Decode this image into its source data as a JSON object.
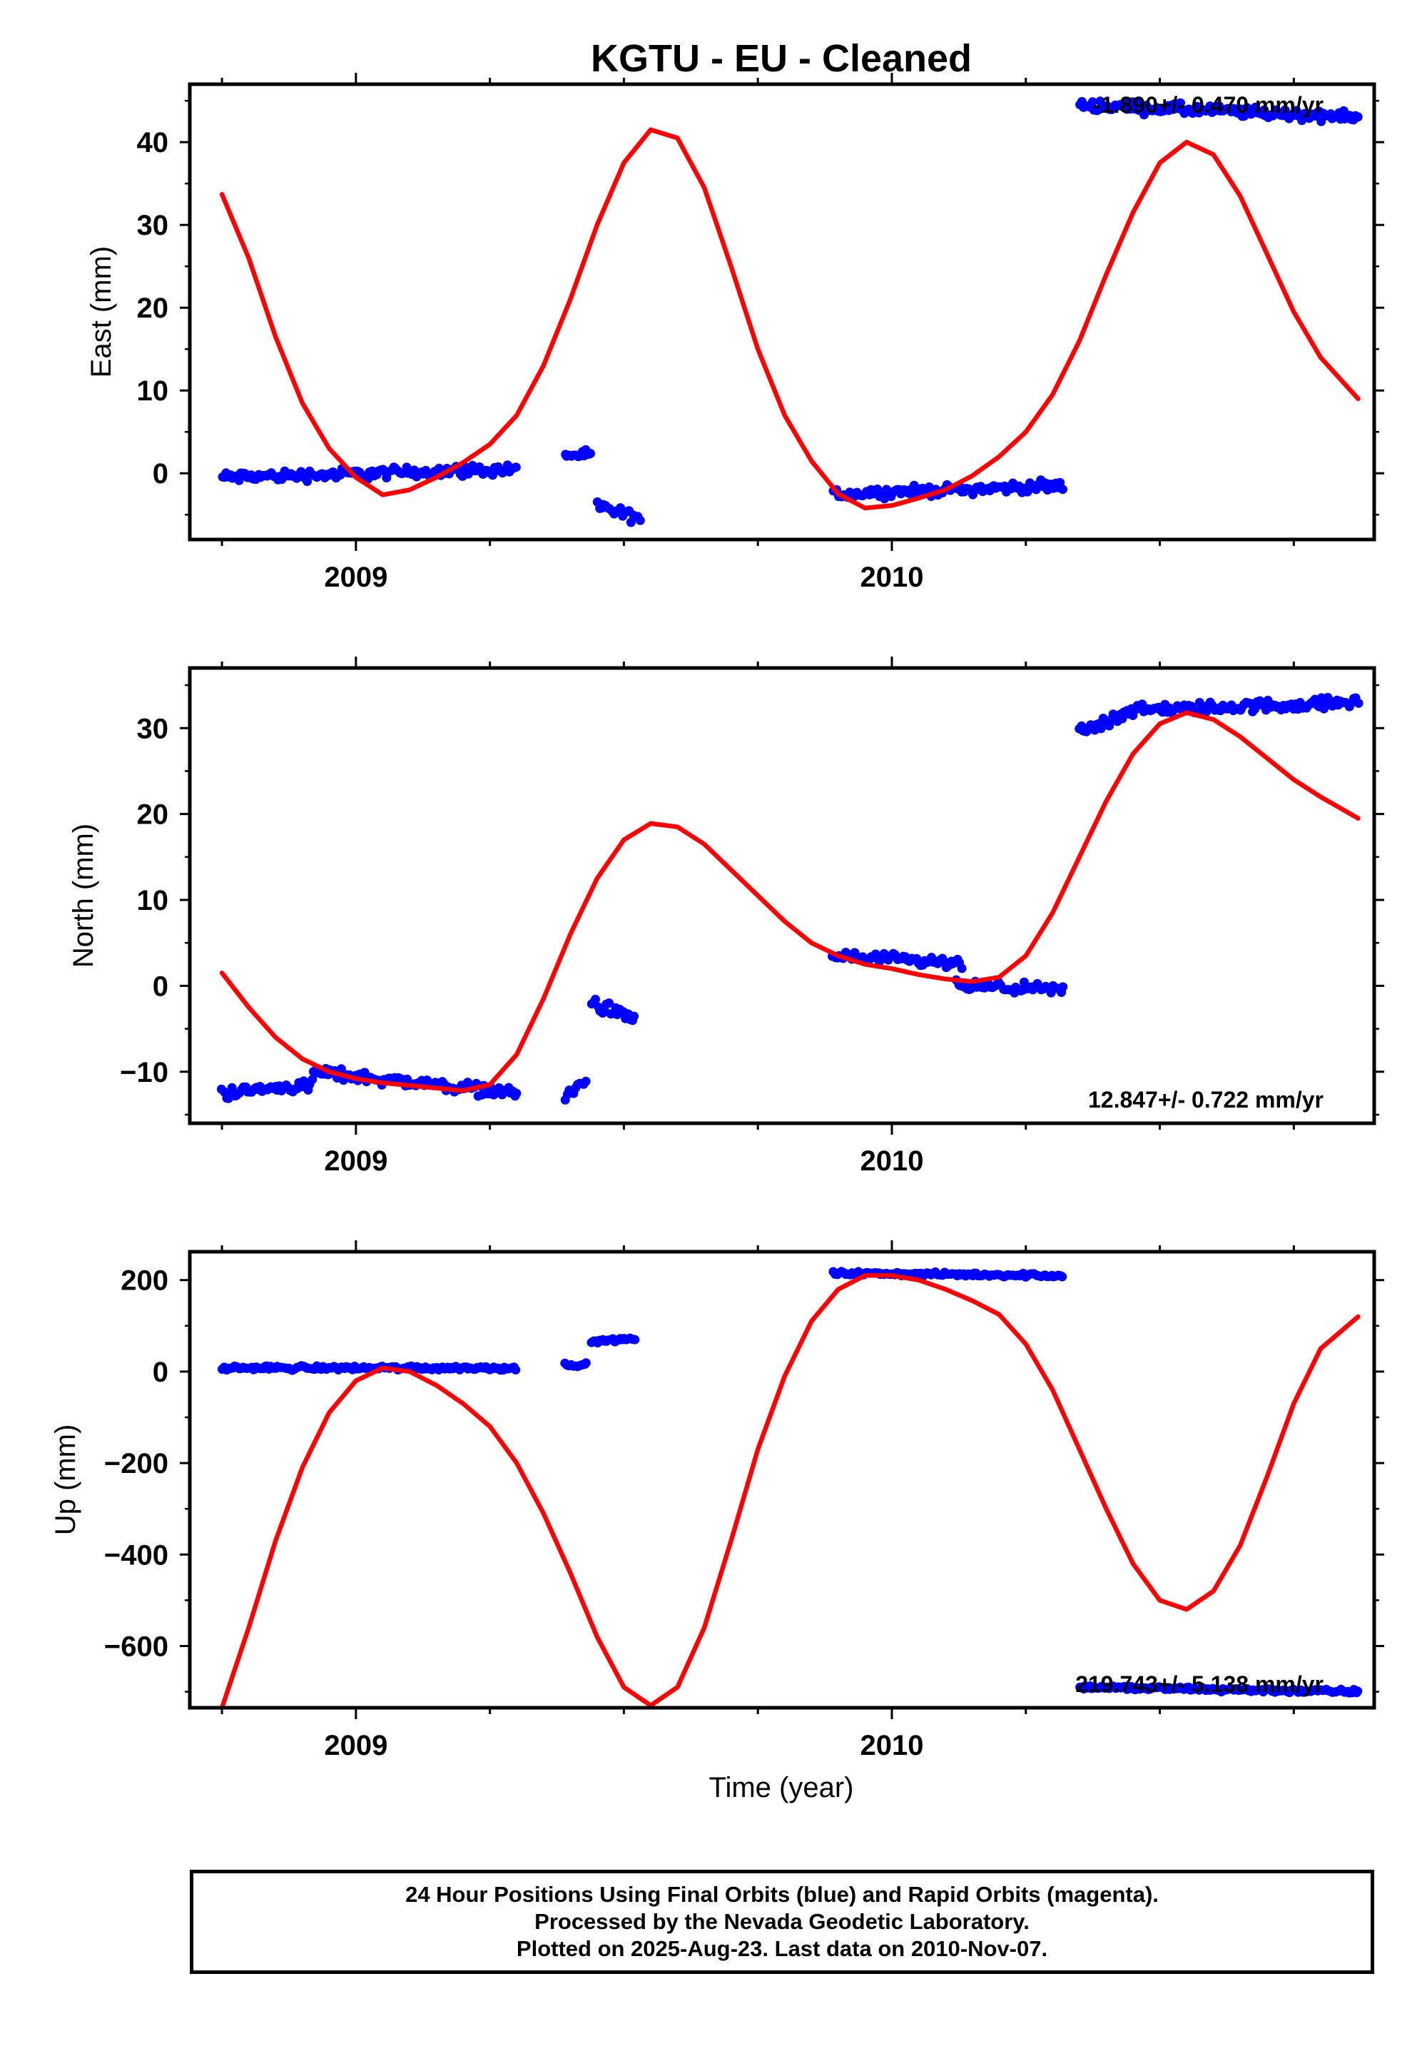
{
  "title": "KGTU  - EU - Cleaned",
  "colors": {
    "final_orbits": "#0000ff",
    "model_fit": "#ff0000",
    "frame": "#000000"
  },
  "xlabel": "Time (year)",
  "x_tick_labels": [
    "2009",
    "2010"
  ],
  "footer": {
    "line1": "24 Hour Positions Using Final Orbits (blue) and Rapid Orbits (magenta).",
    "line2": "Processed by the Nevada Geodetic Laboratory.",
    "line3": "Plotted on 2025-Aug-23. Last data on 2010-Nov-07."
  },
  "chart_data": [
    {
      "type": "scatter",
      "panel": "east",
      "ylabel": "East (mm)",
      "rate_label": "-1.890+/- 0.470 mm/yr",
      "rate_label_position": "top-right",
      "xlim": [
        2008.69,
        2010.9
      ],
      "ylim": [
        -8,
        47
      ],
      "yticks": [
        0,
        10,
        20,
        30,
        40
      ],
      "yticks_minor": [
        -5,
        5,
        15,
        25,
        35,
        45
      ],
      "clusters": [
        {
          "x0": 2008.75,
          "x1": 2009.3,
          "y_start": -0.5,
          "y_end": 0.5,
          "spread": 1.0,
          "step": 0.004
        },
        {
          "x0": 2009.39,
          "x1": 2009.44,
          "y_start": 2.2,
          "y_end": 2.2,
          "spread": 0.7,
          "step": 0.004
        },
        {
          "x0": 2009.45,
          "x1": 2009.53,
          "y_start": -4.0,
          "y_end": -5.5,
          "spread": 1.0,
          "step": 0.004
        },
        {
          "x0": 2009.89,
          "x1": 2010.32,
          "y_start": -2.5,
          "y_end": -1.5,
          "spread": 0.9,
          "step": 0.004
        },
        {
          "x0": 2010.35,
          "x1": 2010.87,
          "y_start": 44.5,
          "y_end": 43.0,
          "spread": 1.0,
          "step": 0.004
        }
      ],
      "model_curve": {
        "x": [
          2008.75,
          2008.8,
          2008.85,
          2008.9,
          2008.95,
          2009.0,
          2009.05,
          2009.1,
          2009.15,
          2009.2,
          2009.25,
          2009.3,
          2009.35,
          2009.4,
          2009.45,
          2009.5,
          2009.55,
          2009.6,
          2009.65,
          2009.7,
          2009.75,
          2009.8,
          2009.85,
          2009.9,
          2009.95,
          2010.0,
          2010.05,
          2010.1,
          2010.15,
          2010.2,
          2010.25,
          2010.3,
          2010.35,
          2010.4,
          2010.45,
          2010.5,
          2010.55,
          2010.6,
          2010.65,
          2010.7,
          2010.75,
          2010.8,
          2010.87
        ],
        "y": [
          33.7,
          26.0,
          16.5,
          8.5,
          3.0,
          -0.5,
          -2.6,
          -2.0,
          -0.5,
          1.3,
          3.5,
          7.0,
          13.0,
          21.0,
          30.0,
          37.5,
          41.5,
          40.5,
          34.5,
          25.0,
          15.0,
          7.0,
          1.5,
          -2.5,
          -4.2,
          -3.9,
          -3.0,
          -2.0,
          -0.3,
          2.0,
          5.0,
          9.5,
          16.0,
          24.0,
          31.5,
          37.5,
          40.0,
          38.5,
          33.5,
          26.5,
          19.5,
          14.0,
          9.0
        ]
      }
    },
    {
      "type": "scatter",
      "panel": "north",
      "ylabel": "North (mm)",
      "rate_label": "12.847+/- 0.722 mm/yr",
      "rate_label_position": "bottom-right",
      "xlim": [
        2008.69,
        2010.9
      ],
      "ylim": [
        -16,
        37
      ],
      "yticks": [
        -10,
        0,
        10,
        20,
        30
      ],
      "yticks_minor": [
        -15,
        -5,
        5,
        15,
        25,
        35
      ],
      "clusters": [
        {
          "x0": 2008.75,
          "x1": 2008.92,
          "y_start": -12.5,
          "y_end": -11.5,
          "spread": 1.0,
          "step": 0.004
        },
        {
          "x0": 2008.92,
          "x1": 2009.3,
          "y_start": -10.0,
          "y_end": -12.5,
          "spread": 1.0,
          "step": 0.004
        },
        {
          "x0": 2009.39,
          "x1": 2009.43,
          "y_start": -13.0,
          "y_end": -11.0,
          "spread": 1.0,
          "step": 0.004
        },
        {
          "x0": 2009.44,
          "x1": 2009.52,
          "y_start": -2.0,
          "y_end": -4.0,
          "spread": 1.1,
          "step": 0.004
        },
        {
          "x0": 2009.89,
          "x1": 2010.13,
          "y_start": 3.5,
          "y_end": 2.5,
          "spread": 1.0,
          "step": 0.004
        },
        {
          "x0": 2010.12,
          "x1": 2010.32,
          "y_start": 0.0,
          "y_end": -0.5,
          "spread": 0.9,
          "step": 0.004
        },
        {
          "x0": 2010.35,
          "x1": 2010.43,
          "y_start": 29.5,
          "y_end": 31.5,
          "spread": 1.2,
          "step": 0.004
        },
        {
          "x0": 2010.43,
          "x1": 2010.87,
          "y_start": 32.0,
          "y_end": 33.0,
          "spread": 1.0,
          "step": 0.004
        }
      ],
      "model_curve": {
        "x": [
          2008.75,
          2008.8,
          2008.85,
          2008.9,
          2008.95,
          2009.0,
          2009.05,
          2009.1,
          2009.15,
          2009.2,
          2009.25,
          2009.3,
          2009.35,
          2009.4,
          2009.45,
          2009.5,
          2009.55,
          2009.6,
          2009.65,
          2009.7,
          2009.75,
          2009.8,
          2009.85,
          2009.9,
          2009.95,
          2010.0,
          2010.05,
          2010.1,
          2010.15,
          2010.2,
          2010.25,
          2010.3,
          2010.35,
          2010.4,
          2010.45,
          2010.5,
          2010.55,
          2010.6,
          2010.65,
          2010.7,
          2010.75,
          2010.8,
          2010.87
        ],
        "y": [
          1.5,
          -2.5,
          -6.0,
          -8.5,
          -10.0,
          -10.8,
          -11.3,
          -11.6,
          -11.9,
          -12.2,
          -11.5,
          -8.0,
          -1.5,
          6.0,
          12.5,
          17.0,
          18.9,
          18.5,
          16.5,
          13.5,
          10.5,
          7.5,
          5.0,
          3.5,
          2.5,
          2.0,
          1.3,
          0.8,
          0.5,
          1.0,
          3.5,
          8.5,
          15.0,
          21.5,
          27.0,
          30.5,
          31.8,
          31.0,
          29.0,
          26.5,
          24.0,
          22.0,
          19.5
        ]
      }
    },
    {
      "type": "scatter",
      "panel": "up",
      "ylabel": "Up (mm)",
      "rate_label": "219.743+/- 5.138 mm/yr",
      "rate_label_position": "bottom-right",
      "xlim": [
        2008.69,
        2010.9
      ],
      "ylim": [
        -735,
        262
      ],
      "yticks": [
        -600,
        -400,
        -200,
        0,
        200
      ],
      "yticks_minor": [
        -700,
        -500,
        -300,
        -100,
        100
      ],
      "clusters": [
        {
          "x0": 2008.75,
          "x1": 2009.3,
          "y_start": 8,
          "y_end": 8,
          "spread": 7,
          "step": 0.004
        },
        {
          "x0": 2009.39,
          "x1": 2009.43,
          "y_start": 15,
          "y_end": 15,
          "spread": 5,
          "step": 0.004
        },
        {
          "x0": 2009.44,
          "x1": 2009.52,
          "y_start": 65,
          "y_end": 72,
          "spread": 5,
          "step": 0.004
        },
        {
          "x0": 2009.89,
          "x1": 2010.32,
          "y_start": 215,
          "y_end": 210,
          "spread": 6,
          "step": 0.004
        },
        {
          "x0": 2010.35,
          "x1": 2010.87,
          "y_start": -690,
          "y_end": -700,
          "spread": 7,
          "step": 0.004
        }
      ],
      "model_curve": {
        "x": [
          2008.75,
          2008.8,
          2008.85,
          2008.9,
          2008.95,
          2009.0,
          2009.05,
          2009.1,
          2009.15,
          2009.2,
          2009.25,
          2009.3,
          2009.35,
          2009.4,
          2009.45,
          2009.5,
          2009.55,
          2009.6,
          2009.65,
          2009.7,
          2009.75,
          2009.8,
          2009.85,
          2009.9,
          2009.95,
          2010.0,
          2010.05,
          2010.1,
          2010.15,
          2010.2,
          2010.25,
          2010.3,
          2010.35,
          2010.4,
          2010.45,
          2010.5,
          2010.55,
          2010.6,
          2010.65,
          2010.7,
          2010.75,
          2010.8,
          2010.87
        ],
        "y": [
          -735,
          -560,
          -370,
          -210,
          -90,
          -20,
          8,
          0,
          -30,
          -70,
          -120,
          -200,
          -310,
          -440,
          -580,
          -690,
          -730,
          -690,
          -560,
          -370,
          -170,
          -10,
          110,
          180,
          210,
          210,
          200,
          180,
          155,
          125,
          60,
          -40,
          -170,
          -300,
          -420,
          -500,
          -520,
          -480,
          -380,
          -230,
          -70,
          50,
          120
        ]
      }
    }
  ]
}
